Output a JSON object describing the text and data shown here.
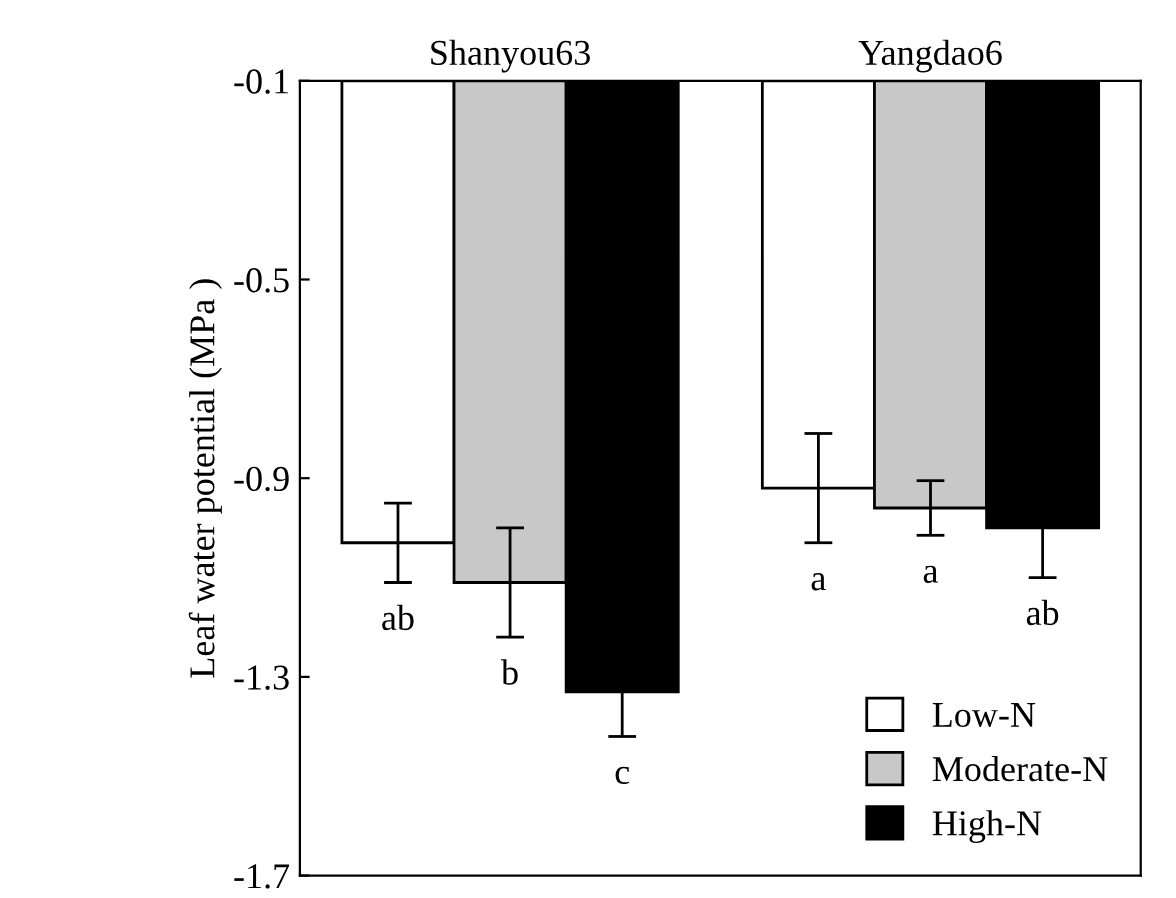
{
  "chart_data": {
    "type": "bar",
    "ylabel": "Leaf water potential (MPa )",
    "categories": [
      "Shanyou63",
      "Yangdao6"
    ],
    "series": [
      {
        "name": "Low-N",
        "color": "#ffffff",
        "values": [
          -1.03,
          -0.92
        ],
        "errors": [
          0.08,
          0.11
        ],
        "value_labels": [
          "ab",
          "a"
        ]
      },
      {
        "name": "Moderate-N",
        "color": "#c8c8c8",
        "values": [
          -1.11,
          -0.96
        ],
        "errors": [
          0.11,
          0.055
        ],
        "value_labels": [
          "b",
          "a"
        ]
      },
      {
        "name": "High-N",
        "color": "#000000",
        "values": [
          -1.33,
          -1.0
        ],
        "errors": [
          0.09,
          0.1
        ],
        "value_labels": [
          "c",
          "ab"
        ]
      }
    ],
    "ylim": [
      -1.7,
      -0.1
    ],
    "yticks": [
      -1.7,
      -1.3,
      -0.9,
      -0.5,
      -0.1
    ],
    "grid": false,
    "legend": "bottom right"
  }
}
